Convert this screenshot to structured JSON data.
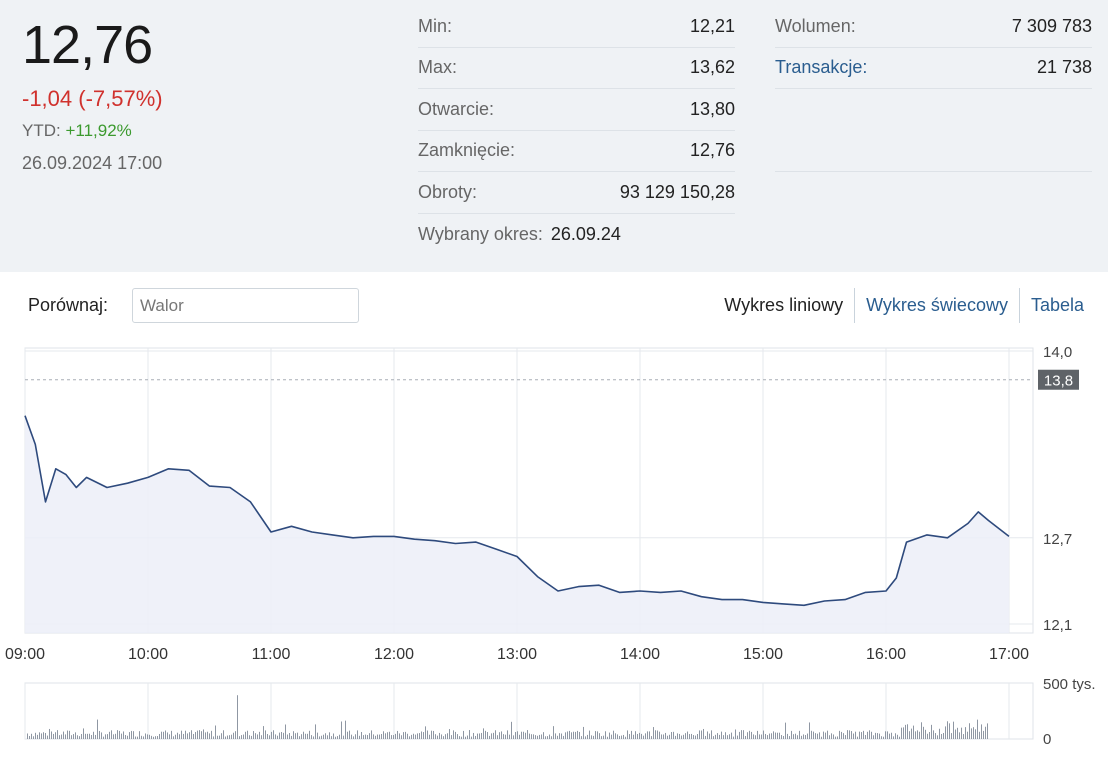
{
  "quote": {
    "price": "12,76",
    "change": "-1,04 (-7,57%)",
    "ytd_label": "YTD:",
    "ytd_value": "+11,92%",
    "datetime": "26.09.2024 17:00"
  },
  "stats": [
    {
      "label": "Min:",
      "value": "12,21"
    },
    {
      "label": "Max:",
      "value": "13,62"
    },
    {
      "label": "Otwarcie:",
      "value": "13,80"
    },
    {
      "label": "Zamknięcie:",
      "value": "12,76"
    },
    {
      "label": "Obroty:",
      "value": "93 129 150,28"
    }
  ],
  "period": {
    "label": "Wybrany okres:",
    "value": "26.09.24"
  },
  "stats2": [
    {
      "label": "Wolumen:",
      "value": "7 309 783"
    },
    {
      "label": "Transakcje:",
      "value": "21 738"
    }
  ],
  "compare": {
    "label": "Porównaj:",
    "placeholder": "Walor"
  },
  "tabs": [
    "Wykres liniowy",
    "Wykres świecowy",
    "Tabela"
  ],
  "colors": {
    "line": "#2e4a7d",
    "area": "#eceef8",
    "negative": "#d0312d",
    "positive": "#3c9a2f",
    "link": "#2a5d8f"
  },
  "chart_data": {
    "type": "line",
    "x_ticks": [
      "09:00",
      "10:00",
      "11:00",
      "12:00",
      "13:00",
      "14:00",
      "15:00",
      "16:00",
      "17:00"
    ],
    "y_ticks": [
      "14,0",
      "12,7",
      "12,1"
    ],
    "ylim": [
      12.1,
      14.0
    ],
    "reference": {
      "value": 13.8,
      "label": "13,8"
    },
    "series": [
      {
        "x": [
          "09:00",
          "09:05",
          "09:10",
          "09:15",
          "09:20",
          "09:25",
          "09:30",
          "09:40",
          "09:50",
          "10:00",
          "10:10",
          "10:20",
          "10:30",
          "10:40",
          "10:50",
          "11:00",
          "11:10",
          "11:20",
          "11:30",
          "11:40",
          "11:50",
          "12:00",
          "12:10",
          "12:20",
          "12:30",
          "12:40",
          "12:50",
          "13:00",
          "13:10",
          "13:20",
          "13:30",
          "13:40",
          "13:50",
          "14:00",
          "14:10",
          "14:20",
          "14:30",
          "14:40",
          "14:50",
          "15:00",
          "15:10",
          "15:20",
          "15:30",
          "15:40",
          "15:50",
          "16:00",
          "16:05",
          "16:10",
          "16:20",
          "16:30",
          "16:40",
          "16:45",
          "16:50",
          "17:00"
        ],
        "y": [
          13.55,
          13.35,
          12.95,
          13.18,
          13.14,
          13.05,
          13.12,
          13.05,
          13.08,
          13.12,
          13.18,
          13.17,
          13.06,
          13.05,
          12.95,
          12.74,
          12.78,
          12.74,
          12.72,
          12.7,
          12.71,
          12.71,
          12.69,
          12.68,
          12.66,
          12.67,
          12.62,
          12.57,
          12.43,
          12.33,
          12.36,
          12.37,
          12.32,
          12.33,
          12.32,
          12.33,
          12.29,
          12.27,
          12.27,
          12.25,
          12.24,
          12.23,
          12.26,
          12.27,
          12.32,
          12.33,
          12.42,
          12.67,
          12.72,
          12.7,
          12.8,
          12.88,
          12.82,
          12.71
        ]
      }
    ],
    "volume": {
      "y_ticks": [
        "500 tys.",
        "0"
      ],
      "ylim": [
        0,
        500000
      ]
    }
  }
}
